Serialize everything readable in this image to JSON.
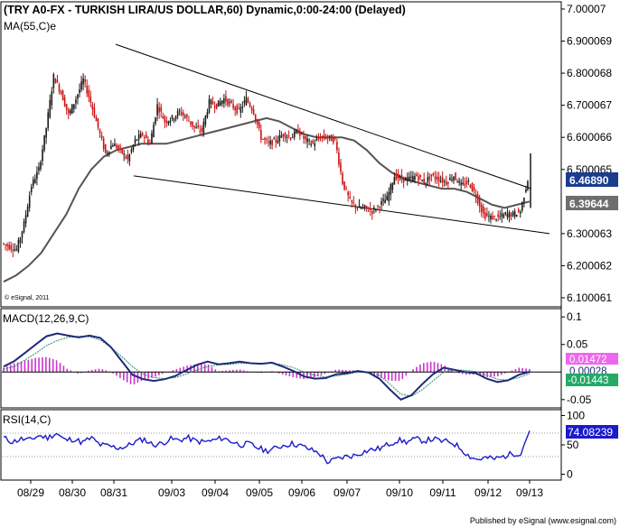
{
  "chart_data": {
    "type": "candlestick",
    "main": {
      "title": "(TRY A0-FX - TURKISH LIRA/US DOLLAR,60) Dynamic,0:00-24:00 (Delayed)",
      "indicator_label": "MA(55,C)e",
      "copyright": "© eSignal, 2011",
      "ylim": [
        6.1,
        7.0
      ],
      "y_ticks": [
        "7.00007",
        "6.900069",
        "6.800068",
        "6.700067",
        "6.600066",
        "6.500065",
        "6.300063",
        "6.200062",
        "6.100061"
      ],
      "y_tick_values": [
        7.00007,
        6.900069,
        6.800068,
        6.700067,
        6.600066,
        6.500065,
        6.300063,
        6.200062,
        6.100061
      ],
      "last_close_label": "6.46890",
      "last_close_value": 6.4689,
      "ma_label": "6.39644",
      "ma_value": 6.39644,
      "price_series": [
        6.27,
        6.26,
        6.25,
        6.33,
        6.45,
        6.5,
        6.63,
        6.79,
        6.74,
        6.67,
        6.72,
        6.78,
        6.71,
        6.63,
        6.55,
        6.58,
        6.56,
        6.53,
        6.59,
        6.61,
        6.58,
        6.7,
        6.65,
        6.66,
        6.68,
        6.66,
        6.63,
        6.62,
        6.71,
        6.7,
        6.72,
        6.7,
        6.68,
        6.72,
        6.68,
        6.6,
        6.58,
        6.59,
        6.61,
        6.6,
        6.62,
        6.59,
        6.58,
        6.6,
        6.6,
        6.59,
        6.46,
        6.4,
        6.38,
        6.38,
        6.37,
        6.39,
        6.41,
        6.48,
        6.47,
        6.47,
        6.48,
        6.46,
        6.48,
        6.47,
        6.46,
        6.48,
        6.45,
        6.46,
        6.42,
        6.36,
        6.35,
        6.35,
        6.36,
        6.36,
        6.37,
        6.47
      ],
      "price_spike_high": 6.55,
      "ma_series": [
        6.15,
        6.17,
        6.2,
        6.24,
        6.3,
        6.36,
        6.44,
        6.5,
        6.54,
        6.56,
        6.57,
        6.58,
        6.58,
        6.58,
        6.59,
        6.6,
        6.61,
        6.62,
        6.63,
        6.64,
        6.65,
        6.66,
        6.65,
        6.63,
        6.61,
        6.6,
        6.6,
        6.6,
        6.59,
        6.56,
        6.52,
        6.49,
        6.47,
        6.46,
        6.45,
        6.44,
        6.44,
        6.43,
        6.41,
        6.39,
        6.38,
        6.39,
        6.4
      ],
      "trendlines": [
        {
          "from": {
            "date": "08/30",
            "price": 6.89
          },
          "to": {
            "date": "09/13",
            "price": 6.44
          }
        },
        {
          "from": {
            "date": "08/31",
            "price": 6.48
          },
          "to": {
            "date": "09/13+",
            "price": 6.3
          }
        }
      ]
    },
    "macd": {
      "label": "MACD(12,26,9,C)",
      "ylim": [
        -0.065,
        0.115
      ],
      "y_ticks": [
        "0.1",
        "0.05",
        "-0.05"
      ],
      "y_tick_values": [
        0.1,
        0.05,
        -0.05
      ],
      "values": [
        0.01,
        0.02,
        0.035,
        0.05,
        0.065,
        0.07,
        0.066,
        0.063,
        0.066,
        0.062,
        0.045,
        0.02,
        -0.005,
        -0.013,
        -0.016,
        -0.013,
        -0.007,
        0.003,
        0.013,
        0.019,
        0.014,
        0.016,
        0.019,
        0.016,
        0.015,
        0.017,
        0.01,
        0.002,
        -0.008,
        -0.012,
        -0.011,
        -0.004,
        -0.002,
        0.002,
        -0.001,
        -0.012,
        -0.032,
        -0.05,
        -0.042,
        -0.022,
        -0.004,
        0.008,
        0.004,
        0.0,
        -0.002,
        -0.012,
        -0.018,
        -0.015,
        -0.005,
        0.0005
      ],
      "signal": [
        0.005,
        0.01,
        0.022,
        0.034,
        0.048,
        0.057,
        0.063,
        0.065,
        0.064,
        0.058,
        0.045,
        0.028,
        0.01,
        -0.004,
        -0.01,
        -0.012,
        -0.01,
        -0.004,
        0.004,
        0.01,
        0.013,
        0.014,
        0.016,
        0.016,
        0.016,
        0.016,
        0.013,
        0.008,
        0.0,
        -0.006,
        -0.009,
        -0.007,
        -0.004,
        0.0,
        0.0,
        -0.006,
        -0.022,
        -0.04,
        -0.044,
        -0.032,
        -0.016,
        0.0,
        0.004,
        0.003,
        0.001,
        -0.006,
        -0.013,
        -0.015,
        -0.01,
        -0.003
      ],
      "histogram_label": "0.01472",
      "histogram_value": 0.01472,
      "macd_label": "0.00028",
      "macd_value": 0.00028,
      "signal_label": "-0.01443",
      "signal_value": -0.01443,
      "colors": {
        "macd": "#1e2a78",
        "signal": "#2a8a6a",
        "histogram": "#cc33cc",
        "histogram_label_bg": "#ee66ee",
        "signal_label_bg": "#22aa66"
      }
    },
    "rsi": {
      "label": "RSI(14,C)",
      "ylim": [
        -10,
        110
      ],
      "y_ticks": [
        "100",
        "50",
        "0"
      ],
      "y_tick_values": [
        100,
        50,
        0
      ],
      "reference_levels": [
        70,
        30
      ],
      "last_label": "74.08239",
      "last_value": 74.08239,
      "values": [
        62,
        55,
        60,
        58,
        66,
        62,
        70,
        58,
        60,
        54,
        62,
        50,
        48,
        45,
        47,
        55,
        60,
        50,
        52,
        60,
        58,
        62,
        56,
        55,
        58,
        62,
        56,
        50,
        52,
        45,
        40,
        44,
        50,
        52,
        48,
        42,
        36,
        20,
        26,
        30,
        32,
        38,
        42,
        44,
        52,
        58,
        55,
        60,
        57,
        60,
        56,
        55,
        46,
        32,
        25,
        28,
        26,
        30,
        35,
        36,
        74
      ],
      "color": "#1a1acc"
    },
    "x_axis": {
      "categories": [
        "08/29",
        "08/30",
        "08/31",
        "09/03",
        "09/04",
        "09/05",
        "09/06",
        "09/07",
        "09/10",
        "09/11",
        "09/12",
        "09/13"
      ]
    },
    "grid": "off",
    "colors": {
      "bull": "#1a1a1a",
      "bear": "#cc1111",
      "ma": "#555555",
      "trendline": "#000000",
      "last_close_bg": "#1a3d8f",
      "ma_label_bg": "#6e6e6e"
    }
  },
  "footer": "Published by eSignal (www.esignal.com)"
}
